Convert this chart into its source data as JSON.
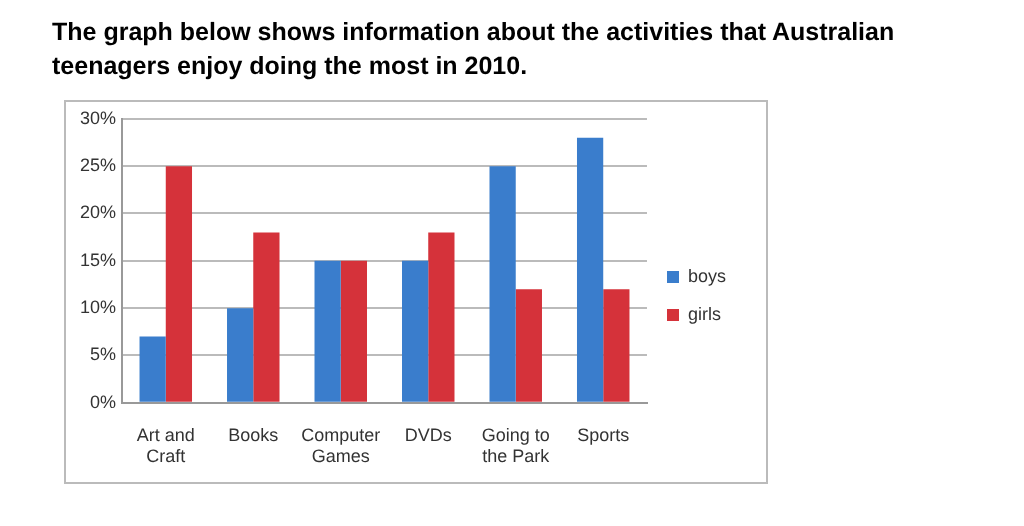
{
  "chart_data": {
    "type": "bar",
    "title": "The graph below shows information about the activities that Australian teenagers enjoy doing the most in 2010.",
    "categories": [
      "Art and Craft",
      "Books",
      "Computer Games",
      "DVDs",
      "Going to the Park",
      "Sports"
    ],
    "series": [
      {
        "name": "boys",
        "color": "#3a7dcc",
        "values": [
          7,
          10,
          15,
          15,
          25,
          28
        ]
      },
      {
        "name": "girls",
        "color": "#d5323a",
        "values": [
          25,
          18,
          15,
          18,
          12,
          12
        ]
      }
    ],
    "ylim": [
      0,
      30
    ],
    "yticks": [
      {
        "value": 0,
        "label": "0%"
      },
      {
        "value": 5,
        "label": "5%"
      },
      {
        "value": 10,
        "label": "10%"
      },
      {
        "value": 15,
        "label": "15%"
      },
      {
        "value": 20,
        "label": "20%"
      },
      {
        "value": 25,
        "label": "25%"
      },
      {
        "value": 30,
        "label": "30%"
      }
    ],
    "grid": "y",
    "legend": "right"
  }
}
